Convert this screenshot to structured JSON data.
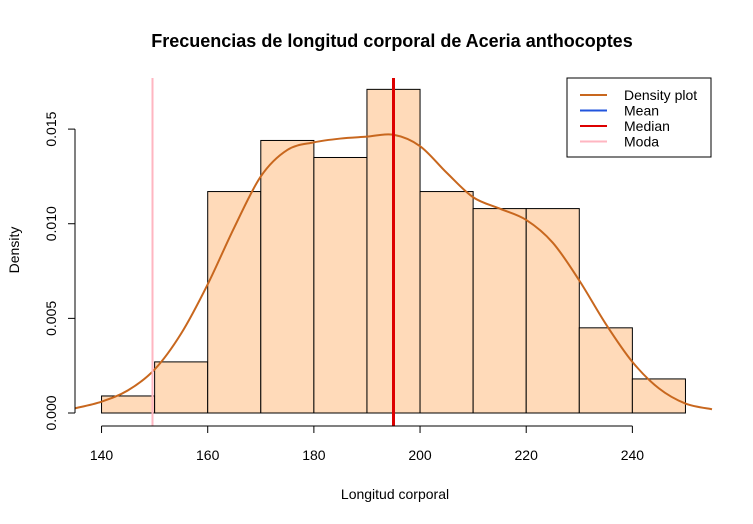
{
  "chart_data": {
    "type": "histogram",
    "title": "Frecuencias de longitud corporal de Aceria anthocoptes",
    "xlabel": "Longitud corporal",
    "ylabel": "Density",
    "xlim": [
      135,
      255
    ],
    "ylim": [
      0,
      0.0177
    ],
    "x_ticks": [
      {
        "value": 140,
        "label": "140"
      },
      {
        "value": 160,
        "label": "160"
      },
      {
        "value": 180,
        "label": "180"
      },
      {
        "value": 200,
        "label": "200"
      },
      {
        "value": 220,
        "label": "220"
      },
      {
        "value": 240,
        "label": "240"
      }
    ],
    "y_ticks": [
      {
        "value": 0.0,
        "label": "0.000"
      },
      {
        "value": 0.005,
        "label": "0.005"
      },
      {
        "value": 0.01,
        "label": "0.010"
      },
      {
        "value": 0.015,
        "label": "0.015"
      }
    ],
    "bins": [
      {
        "start": 140,
        "end": 150,
        "density": 0.0009
      },
      {
        "start": 150,
        "end": 160,
        "density": 0.0027
      },
      {
        "start": 160,
        "end": 170,
        "density": 0.0117
      },
      {
        "start": 170,
        "end": 180,
        "density": 0.0144
      },
      {
        "start": 180,
        "end": 190,
        "density": 0.0135
      },
      {
        "start": 190,
        "end": 200,
        "density": 0.0171
      },
      {
        "start": 200,
        "end": 210,
        "density": 0.0117
      },
      {
        "start": 210,
        "end": 220,
        "density": 0.0108
      },
      {
        "start": 220,
        "end": 230,
        "density": 0.0108
      },
      {
        "start": 230,
        "end": 240,
        "density": 0.0045
      },
      {
        "start": 240,
        "end": 250,
        "density": 0.0018
      }
    ],
    "density_curve": {
      "x": [
        135,
        140,
        145,
        150,
        155,
        160,
        165,
        170,
        175,
        180,
        185,
        190,
        195,
        200,
        205,
        210,
        215,
        220,
        225,
        230,
        235,
        240,
        245,
        250,
        255
      ],
      "y": [
        0.00025,
        0.0006,
        0.0012,
        0.0023,
        0.0042,
        0.0068,
        0.0098,
        0.0125,
        0.0139,
        0.0143,
        0.0145,
        0.0146,
        0.0147,
        0.0141,
        0.0127,
        0.0114,
        0.0108,
        0.0102,
        0.009,
        0.007,
        0.0047,
        0.0027,
        0.0013,
        0.0005,
        0.0002
      ]
    },
    "reference_lines": [
      {
        "name": "Mean",
        "value": 195.0,
        "color": "#2255dd"
      },
      {
        "name": "Median",
        "value": 195.0,
        "color": "#dd0000"
      },
      {
        "name": "Moda",
        "value": 149.6,
        "color": "#ffb6c1"
      }
    ],
    "legend": {
      "placement": "top-right",
      "entries": [
        {
          "label": "Density plot",
          "color": "#c8671e"
        },
        {
          "label": "Mean",
          "color": "#2255dd"
        },
        {
          "label": "Median",
          "color": "#dd0000"
        },
        {
          "label": "Moda",
          "color": "#ffb6c1"
        }
      ]
    },
    "colors": {
      "bar_fill": "#ffdab9",
      "bar_stroke": "#000000",
      "density": "#c8671e"
    },
    "grid": false
  }
}
